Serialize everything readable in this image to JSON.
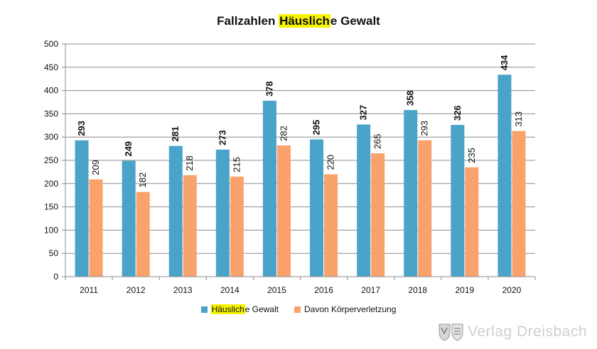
{
  "chart_data": {
    "type": "bar",
    "title_parts": [
      "Fallzahlen ",
      "Häuslich",
      "e Gewalt"
    ],
    "categories": [
      "2011",
      "2012",
      "2013",
      "2014",
      "2015",
      "2016",
      "2017",
      "2018",
      "2019",
      "2020"
    ],
    "series": [
      {
        "name": "Häusliche Gewalt",
        "name_parts": [
          "Häuslich",
          "e Gewalt"
        ],
        "color": "#4aa3c8",
        "values": [
          293,
          249,
          281,
          273,
          378,
          295,
          327,
          358,
          326,
          434
        ]
      },
      {
        "name": "Davon Körperverletzung",
        "color": "#f9a26b",
        "values": [
          209,
          182,
          218,
          215,
          282,
          220,
          265,
          293,
          235,
          313
        ]
      }
    ],
    "ylim": [
      0,
      500
    ],
    "yticks": [
      0,
      50,
      100,
      150,
      200,
      250,
      300,
      350,
      400,
      450,
      500
    ],
    "grid": true,
    "legend_position": "bottom",
    "highlight_color": "#f6f200"
  },
  "watermark": {
    "text": "Verlag Dreisbach",
    "icon": "coat-of-arms-icon"
  }
}
